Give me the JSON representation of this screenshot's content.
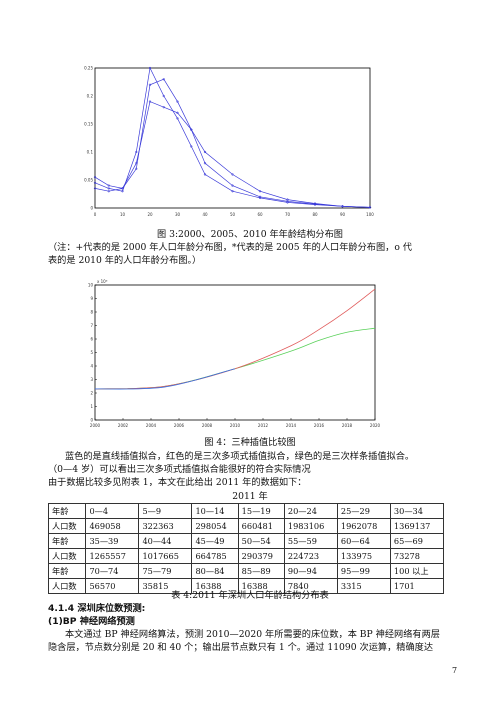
{
  "figure3": {
    "caption": "图 3:2000、2005、2010 年年龄结构分布图",
    "note_line1": "（注：+代表的是 2000 年人口年龄分布图，*代表的是 2005 年的人口年龄分布图，o 代",
    "note_line2": "表的是 2010 年的人口年龄分布图。）",
    "chart_data": {
      "type": "line",
      "xlim": [
        0,
        100
      ],
      "ylim": [
        0,
        0.25
      ],
      "x_ticks": [
        "0",
        "10",
        "20",
        "30",
        "40",
        "50",
        "60",
        "70",
        "80",
        "90",
        "100"
      ],
      "y_ticks": [
        "0",
        "0.05",
        "0.1",
        "0.15",
        "0.2",
        "0.25"
      ],
      "series": [
        {
          "name": "+",
          "x": [
            0,
            5,
            10,
            15,
            20,
            25,
            30,
            35,
            40,
            50,
            60,
            70,
            80,
            90,
            100
          ],
          "y": [
            0.045,
            0.035,
            0.03,
            0.1,
            0.25,
            0.2,
            0.16,
            0.11,
            0.06,
            0.03,
            0.018,
            0.01,
            0.006,
            0.003,
            0.001
          ]
        },
        {
          "name": "*",
          "x": [
            0,
            5,
            10,
            15,
            20,
            25,
            30,
            35,
            40,
            50,
            60,
            70,
            80,
            90,
            100
          ],
          "y": [
            0.035,
            0.03,
            0.035,
            0.07,
            0.22,
            0.23,
            0.19,
            0.14,
            0.08,
            0.04,
            0.02,
            0.012,
            0.007,
            0.003,
            0.001
          ]
        },
        {
          "name": "o",
          "x": [
            0,
            5,
            10,
            15,
            20,
            25,
            30,
            35,
            40,
            50,
            60,
            70,
            80,
            90,
            100
          ],
          "y": [
            0.055,
            0.04,
            0.035,
            0.08,
            0.19,
            0.18,
            0.17,
            0.14,
            0.1,
            0.06,
            0.03,
            0.015,
            0.008,
            0.003,
            0.001
          ]
        }
      ],
      "color": "#3b3bd9"
    }
  },
  "figure4": {
    "caption": "图 4：三种插值比较图",
    "chart_data": {
      "type": "line",
      "xlim": [
        2000,
        2020
      ],
      "ylim": [
        0,
        10000000
      ],
      "y_exponent_label": "x 10⁶",
      "x_ticks": [
        "2000",
        "2002",
        "2004",
        "2006",
        "2008",
        "2010",
        "2012",
        "2014",
        "2016",
        "2018",
        "2020"
      ],
      "y_ticks": [
        "0",
        "1",
        "2",
        "3",
        "4",
        "5",
        "6",
        "7",
        "8",
        "9",
        "10"
      ],
      "series": [
        {
          "name": "直线插值",
          "color": "#3b6fe0",
          "x": [
            2000,
            2005,
            2010
          ],
          "y": [
            2300000,
            2450000,
            3800000
          ]
        },
        {
          "name": "三次多项式插值",
          "color": "#e05a5a",
          "x": [
            2000,
            2005,
            2010,
            2014,
            2016,
            2018,
            2020
          ],
          "y": [
            2300000,
            2500000,
            3800000,
            5500000,
            6700000,
            8100000,
            9700000
          ]
        },
        {
          "name": "三次样条插值",
          "color": "#5ad15a",
          "x": [
            2000,
            2005,
            2010,
            2014,
            2016,
            2018,
            2020
          ],
          "y": [
            2300000,
            2500000,
            3800000,
            5100000,
            5900000,
            6500000,
            6800000
          ]
        }
      ]
    }
  },
  "para1_line1": "蓝色的是直线插值拟合，红色的是三次多项式插值拟合，绿色的是三次样条插值拟合。",
  "para1_line2": "（0—4 岁）可以看出三次多项式插值拟合能很好的符合实际情况",
  "para1_line3": "由于数据比较多见附表 1，本文在此给出 2011 年的数据如下：",
  "table": {
    "title": "2011 年",
    "rows": [
      [
        "年龄",
        "0—4",
        "5—9",
        "10—14",
        "15—19",
        "20—24",
        "25—29",
        "30—34"
      ],
      [
        "人口数",
        "469058",
        "322363",
        "298054",
        "660481",
        "1983106",
        "1962078",
        "1369137"
      ],
      [
        "年龄",
        "35—39",
        "40—44",
        "45—49",
        "50—54",
        "55—59",
        "60—64",
        "65—69"
      ],
      [
        "人口数",
        "1265557",
        "1017665",
        "664785",
        "290379",
        "224723",
        "133975",
        "73278"
      ],
      [
        "年龄",
        "70—74",
        "75—79",
        "80—84",
        "85—89",
        "90—94",
        "95—99",
        "100 以上"
      ],
      [
        "人口数",
        "56570",
        "35815",
        "16388",
        "16388",
        "7840",
        "3315",
        "1701"
      ]
    ],
    "caption": "表 4:2011 年深圳人口年龄结构分布表"
  },
  "section_heading": "4.1.4 深圳床位数预测:",
  "subsection_heading": "(1)BP 神经网络预测",
  "para2_line1": "本文通过 BP 神经网络算法，预测 2010—2020 年所需要的床位数，本 BP 神经网络有两层",
  "para2_line2": "隐含层，节点数分别是 20 和 40 个；输出层节点数只有 1 个。通过 11090 次运算，精确度达",
  "page_number": "7"
}
